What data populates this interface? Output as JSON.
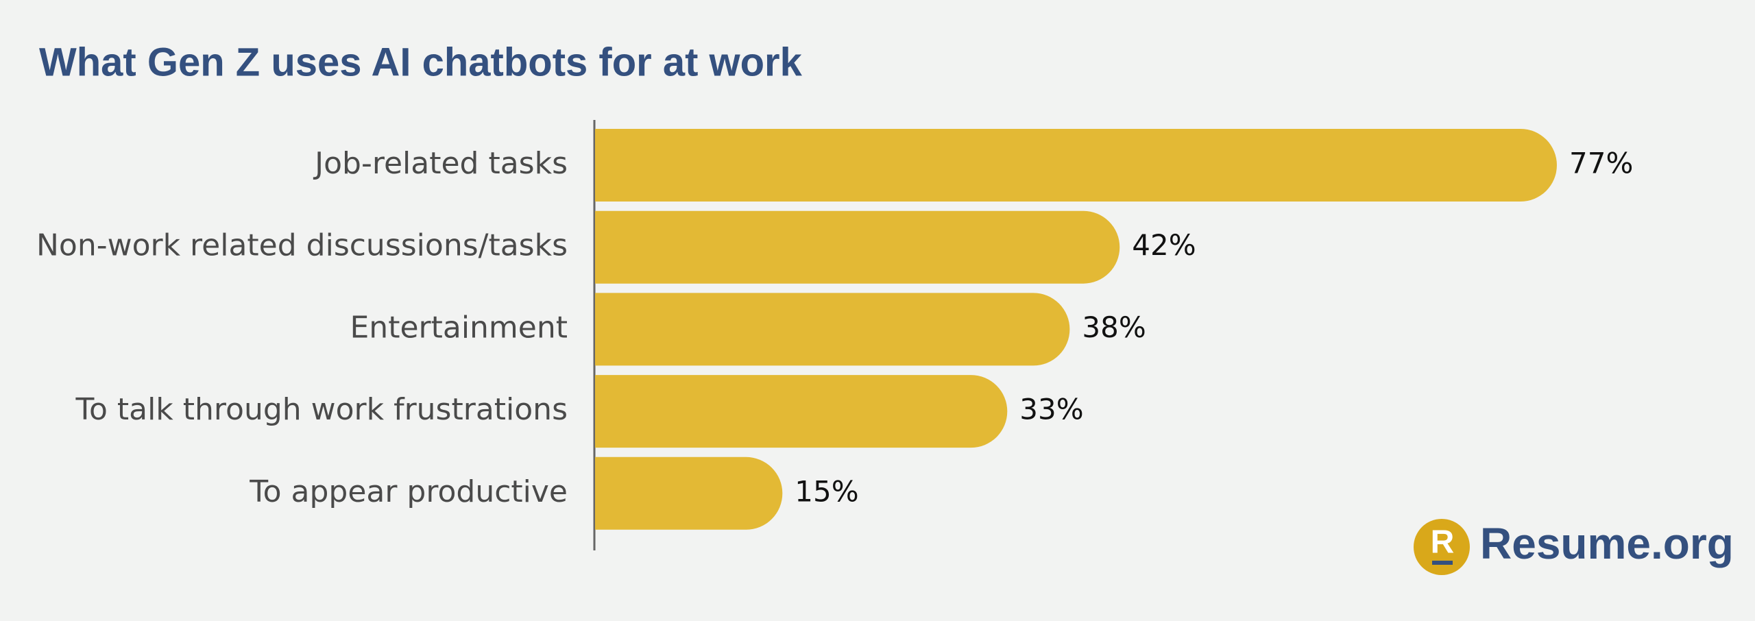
{
  "chart_data": {
    "type": "bar",
    "orientation": "horizontal",
    "title": "What Gen Z uses AI chatbots for at work",
    "categories": [
      "Job-related tasks",
      "Non-work related discussions/tasks",
      "Entertainment",
      "To talk through work frustrations",
      "To appear productive"
    ],
    "values": [
      77,
      42,
      38,
      33,
      15
    ],
    "value_labels": [
      "77%",
      "42%",
      "38%",
      "33%",
      "15%"
    ],
    "color": "#e3b935"
  },
  "brand": {
    "mark": "R",
    "name": "Resume.org"
  }
}
